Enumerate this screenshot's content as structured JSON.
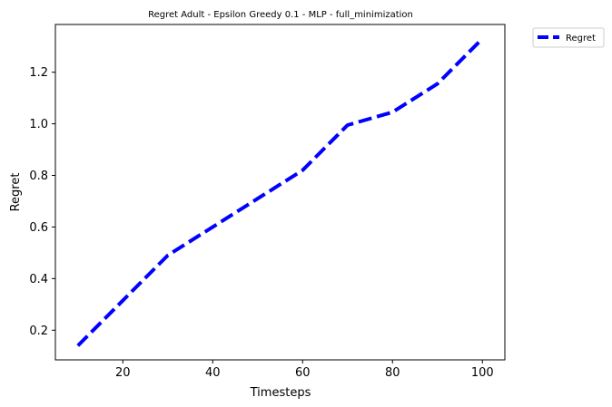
{
  "chart_data": {
    "type": "line",
    "title": "Regret Adult - Epsilon Greedy 0.1 - MLP - full_minimization",
    "xlabel": "Timesteps",
    "ylabel": "Regret",
    "xlim": [
      5,
      105
    ],
    "ylim": [
      0.085,
      1.385
    ],
    "xticks": [
      20,
      40,
      60,
      80,
      100
    ],
    "xtick_labels": [
      "20",
      "40",
      "60",
      "80",
      "100"
    ],
    "yticks": [
      0.2,
      0.4,
      0.6,
      0.8,
      1.0,
      1.2
    ],
    "ytick_labels": [
      "0.2",
      "0.4",
      "0.6",
      "0.8",
      "1.0",
      "1.2"
    ],
    "grid": false,
    "legend_position": "outside-top-right",
    "series": [
      {
        "name": "Regret",
        "color": "#0000ff",
        "line_style": "dashed",
        "x": [
          10,
          20,
          30,
          40,
          50,
          60,
          70,
          80,
          90,
          100
        ],
        "values": [
          0.14,
          0.315,
          0.49,
          0.6,
          0.71,
          0.82,
          0.995,
          1.045,
          1.155,
          1.33
        ]
      }
    ]
  }
}
